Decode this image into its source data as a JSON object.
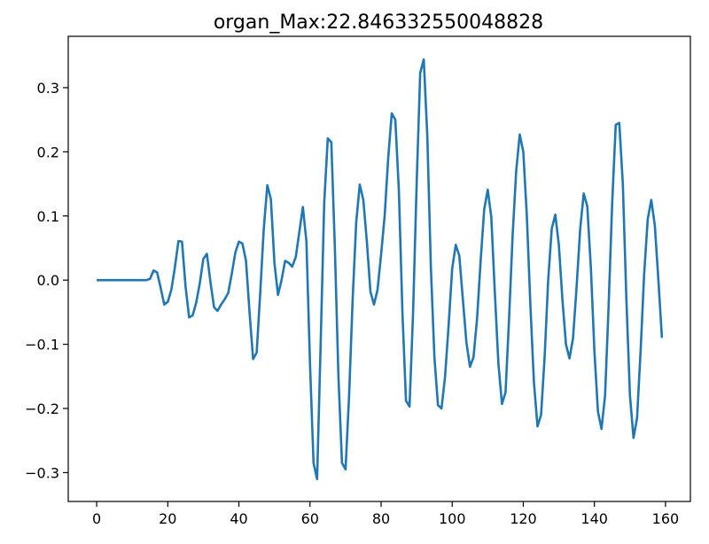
{
  "chart_data": {
    "type": "line",
    "title": "organ_Max:22.846332550048828",
    "xlabel": "",
    "ylabel": "",
    "xlim": [
      -8.0,
      167.0
    ],
    "ylim": [
      -0.345,
      0.38
    ],
    "xticks": [
      0,
      20,
      40,
      60,
      80,
      100,
      120,
      140,
      160
    ],
    "yticks": [
      -0.3,
      -0.2,
      -0.1,
      0.0,
      0.1,
      0.2,
      0.3
    ],
    "ytick_labels": [
      "−0.3",
      "−0.2",
      "−0.1",
      "0.0",
      "0.1",
      "0.2",
      "0.3"
    ],
    "grid": false,
    "series": [
      {
        "color": "#1f77b4",
        "x": [
          0,
          1,
          2,
          3,
          4,
          5,
          6,
          7,
          8,
          9,
          10,
          11,
          12,
          13,
          14,
          15,
          16,
          17,
          18,
          19,
          20,
          21,
          22,
          23,
          24,
          25,
          26,
          27,
          28,
          29,
          30,
          31,
          32,
          33,
          34,
          35,
          36,
          37,
          38,
          39,
          40,
          41,
          42,
          43,
          44,
          45,
          46,
          47,
          48,
          49,
          50,
          51,
          52,
          53,
          54,
          55,
          56,
          57,
          58,
          59,
          60,
          61,
          62,
          63,
          64,
          65,
          66,
          67,
          68,
          69,
          70,
          71,
          72,
          73,
          74,
          75,
          76,
          77,
          78,
          79,
          80,
          81,
          82,
          83,
          84,
          85,
          86,
          87,
          88,
          89,
          90,
          91,
          92,
          93,
          94,
          95,
          96,
          97,
          98,
          99,
          100,
          101,
          102,
          103,
          104,
          105,
          106,
          107,
          108,
          109,
          110,
          111,
          112,
          113,
          114,
          115,
          116,
          117,
          118,
          119,
          120,
          121,
          122,
          123,
          124,
          125,
          126,
          127,
          128,
          129,
          130,
          131,
          132,
          133,
          134,
          135,
          136,
          137,
          138,
          139,
          140,
          141,
          142,
          143,
          144,
          145,
          146,
          147,
          148,
          149,
          150,
          151,
          152,
          153,
          154,
          155,
          156,
          157,
          158,
          159
        ],
        "y": [
          0.0,
          0.0,
          0.0,
          0.0,
          0.0,
          0.0,
          0.0,
          0.0,
          0.0,
          0.0,
          0.0,
          0.0,
          0.0,
          0.0,
          0.0,
          0.002,
          0.015,
          0.012,
          -0.012,
          -0.038,
          -0.034,
          -0.015,
          0.02,
          0.061,
          0.06,
          -0.01,
          -0.058,
          -0.055,
          -0.035,
          -0.005,
          0.033,
          0.041,
          -0.003,
          -0.042,
          -0.048,
          -0.038,
          -0.03,
          -0.02,
          0.01,
          0.043,
          0.06,
          0.057,
          0.03,
          -0.05,
          -0.123,
          -0.113,
          -0.02,
          0.08,
          0.148,
          0.126,
          0.027,
          -0.023,
          0.0,
          0.03,
          0.027,
          0.021,
          0.036,
          0.075,
          0.114,
          0.06,
          -0.13,
          -0.285,
          -0.31,
          -0.1,
          0.12,
          0.221,
          0.215,
          0.05,
          -0.15,
          -0.285,
          -0.295,
          -0.18,
          -0.03,
          0.09,
          0.149,
          0.125,
          0.06,
          -0.018,
          -0.038,
          -0.015,
          0.04,
          0.1,
          0.19,
          0.26,
          0.25,
          0.14,
          -0.05,
          -0.188,
          -0.197,
          -0.05,
          0.15,
          0.323,
          0.344,
          0.225,
          0.02,
          -0.12,
          -0.195,
          -0.2,
          -0.15,
          -0.07,
          0.018,
          0.055,
          0.038,
          -0.03,
          -0.097,
          -0.135,
          -0.12,
          -0.06,
          0.03,
          0.11,
          0.141,
          0.098,
          -0.02,
          -0.13,
          -0.193,
          -0.175,
          -0.06,
          0.07,
          0.17,
          0.227,
          0.2,
          0.1,
          -0.04,
          -0.16,
          -0.228,
          -0.21,
          -0.12,
          0.0,
          0.08,
          0.102,
          0.055,
          -0.03,
          -0.1,
          -0.122,
          -0.09,
          -0.01,
          0.08,
          0.135,
          0.115,
          0.02,
          -0.11,
          -0.205,
          -0.232,
          -0.18,
          -0.04,
          0.12,
          0.242,
          0.245,
          0.15,
          -0.03,
          -0.18,
          -0.246,
          -0.215,
          -0.11,
          0.01,
          0.095,
          0.125,
          0.085,
          0.0,
          -0.09
        ]
      }
    ]
  }
}
